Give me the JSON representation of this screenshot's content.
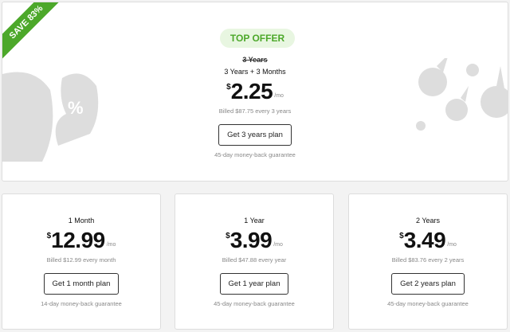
{
  "top": {
    "ribbon": "SAVE 83%",
    "badge": "TOP OFFER",
    "old_term": "3 Years",
    "term": "3 Years + 3 Months",
    "currency": "$",
    "price": "2.25",
    "per": "/mo",
    "billed": "Billed $87.75 every 3 years",
    "button": "Get 3 years plan",
    "guarantee": "45-day money-back guarantee"
  },
  "plans": [
    {
      "term": "1 Month",
      "currency": "$",
      "price": "12.99",
      "per": "/mo",
      "billed": "Billed $12.99 every month",
      "button": "Get 1 month plan",
      "guarantee": "14-day money-back guarantee"
    },
    {
      "term": "1 Year",
      "currency": "$",
      "price": "3.99",
      "per": "/mo",
      "billed": "Billed $47.88 every year",
      "button": "Get 1 year plan",
      "guarantee": "45-day money-back guarantee"
    },
    {
      "term": "2 Years",
      "currency": "$",
      "price": "3.49",
      "per": "/mo",
      "billed": "Billed $83.76 every 2 years",
      "button": "Get 2 years plan",
      "guarantee": "45-day money-back guarantee"
    }
  ],
  "colors": {
    "accent": "#4ca82a",
    "badge_bg": "#e8f6e1"
  }
}
